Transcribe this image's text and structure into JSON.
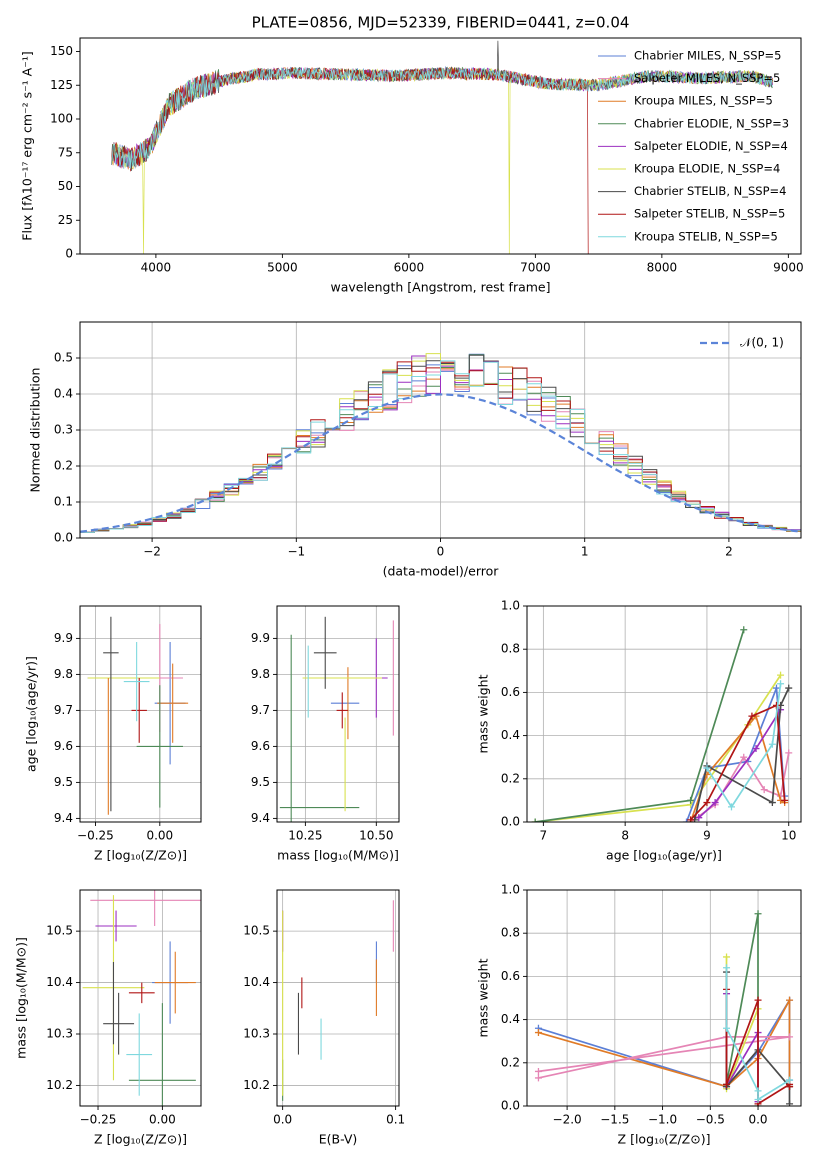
{
  "colors": {
    "chabrier_miles": "#5b7fd6",
    "salpeter_miles": "#e585b5",
    "kroupa_miles": "#e07b27",
    "chabrier_elodie": "#4e8a57",
    "salpeter_elodie": "#9b2fc0",
    "kroupa_elodie": "#d8e14e",
    "chabrier_stelib": "#4a4a4a",
    "salpeter_stelib": "#b01515",
    "kroupa_stelib": "#7fd8de"
  },
  "chart_data": [
    {
      "id": "spectrum",
      "type": "line",
      "title": "PLATE=0856, MJD=52339, FIBERID=0441, z=0.04",
      "xlabel": "wavelength [Angstrom, rest frame]",
      "ylabel": "Flux [fλ10⁻¹⁷ erg cm⁻² s⁻¹ A⁻¹]",
      "xlim": [
        3400,
        9100
      ],
      "ylim": [
        0,
        160
      ],
      "xticks": [
        "4000",
        "5000",
        "6000",
        "7000",
        "8000",
        "9000"
      ],
      "yticks": [
        "0",
        "25",
        "50",
        "75",
        "100",
        "125",
        "150"
      ],
      "grid": false,
      "legend_position": "top-right",
      "continuum": {
        "x": [
          3650,
          3800,
          3950,
          4100,
          4300,
          4500,
          4800,
          5100,
          5500,
          5900,
          6300,
          6700,
          7100,
          7500,
          7900,
          8300,
          8700,
          8880
        ],
        "y": [
          75,
          70,
          78,
          110,
          122,
          128,
          133,
          134,
          133,
          132,
          134,
          133,
          126,
          125,
          132,
          130,
          132,
          127
        ]
      },
      "series": [
        {
          "name": "Chabrier MILES, N_SSP=5",
          "color_key": "chabrier_miles"
        },
        {
          "name": "Salpeter MILES, N_SSP=5",
          "color_key": "salpeter_miles"
        },
        {
          "name": "Kroupa MILES, N_SSP=5",
          "color_key": "kroupa_miles"
        },
        {
          "name": "Chabrier ELODIE, N_SSP=3",
          "color_key": "chabrier_elodie"
        },
        {
          "name": "Salpeter ELODIE, N_SSP=4",
          "color_key": "salpeter_elodie"
        },
        {
          "name": "Kroupa ELODIE, N_SSP=4",
          "color_key": "kroupa_elodie"
        },
        {
          "name": "Chabrier STELIB, N_SSP=4",
          "color_key": "chabrier_stelib"
        },
        {
          "name": "Salpeter STELIB, N_SSP=5",
          "color_key": "salpeter_stelib"
        },
        {
          "name": "Kroupa STELIB, N_SSP=5",
          "color_key": "kroupa_stelib"
        }
      ]
    },
    {
      "id": "residuals",
      "type": "line",
      "title": "",
      "xlabel": "(data-model)/error",
      "ylabel": "Normed distribution",
      "xlim": [
        -2.5,
        2.5
      ],
      "ylim": [
        0,
        0.6
      ],
      "xticks": [
        "−2",
        "−1",
        "0",
        "1",
        "2"
      ],
      "yticks": [
        "0.0",
        "0.1",
        "0.2",
        "0.3",
        "0.4",
        "0.5"
      ],
      "grid": true,
      "legend_position": "top-right",
      "legend_label": "𝒩(0, 1)",
      "bin_edges_start": -2.5,
      "bin_width": 0.1,
      "hist_base": [
        0.018,
        0.022,
        0.027,
        0.033,
        0.04,
        0.05,
        0.062,
        0.077,
        0.095,
        0.115,
        0.137,
        0.16,
        0.184,
        0.21,
        0.237,
        0.265,
        0.293,
        0.32,
        0.345,
        0.37,
        0.395,
        0.41,
        0.432,
        0.45,
        0.465,
        0.47,
        0.467,
        0.456,
        0.445,
        0.43,
        0.415,
        0.395,
        0.372,
        0.345,
        0.318,
        0.29,
        0.26,
        0.23,
        0.2,
        0.17,
        0.142,
        0.117,
        0.096,
        0.078,
        0.063,
        0.05,
        0.04,
        0.032,
        0.026,
        0.021
      ],
      "series_color_keys": [
        "chabrier_miles",
        "salpeter_miles",
        "kroupa_miles",
        "chabrier_elodie",
        "salpeter_elodie",
        "kroupa_elodie",
        "chabrier_stelib",
        "salpeter_stelib",
        "kroupa_stelib"
      ]
    },
    {
      "id": "age_vs_z",
      "type": "scatter",
      "xlabel": "Z [log₁₀(Z/Z⊙)]",
      "ylabel": "age  [log₁₀(age/yr)]",
      "xlim": [
        -0.31,
        0.16
      ],
      "ylim": [
        9.39,
        9.99
      ],
      "xticks": [
        -0.25,
        0.0
      ],
      "xtick_labels": [
        "−0.25",
        "0.00"
      ],
      "yticks": [
        9.4,
        9.5,
        9.6,
        9.7,
        9.8,
        9.9
      ],
      "ytick_labels": [
        "9.4",
        "9.5",
        "9.6",
        "9.7",
        "9.8",
        "9.9"
      ],
      "grid": true,
      "points": [
        {
          "color_key": "chabrier_miles",
          "x": 0.04,
          "y": 9.72,
          "xerr": 0.06,
          "yerr": 0.17
        },
        {
          "color_key": "salpeter_miles",
          "x": 0.0,
          "y": 9.79,
          "xerr": 0.09,
          "yerr": 0.15
        },
        {
          "color_key": "kroupa_miles",
          "x": 0.05,
          "y": 9.72,
          "xerr": 0.06,
          "yerr": 0.11
        },
        {
          "color_key": "chabrier_elodie",
          "x": 0.0,
          "y": 9.6,
          "xerr": 0.09,
          "yerr": 0.17
        },
        {
          "color_key": "salpeter_elodie",
          "x": -0.18,
          "y": 9.79,
          "xerr": 0.1,
          "yerr": 0.0
        },
        {
          "color_key": "kroupa_elodie",
          "x": -0.14,
          "y": 9.79,
          "xerr": 0.14,
          "yerr": 0.0
        },
        {
          "color_key": "chabrier_stelib",
          "x": -0.19,
          "y": 9.69,
          "xerr": 0.0,
          "yerr": 0.27
        },
        {
          "color_key": "salpeter_stelib",
          "x": -0.08,
          "y": 9.7,
          "xerr": 0.03,
          "yerr": 0.09
        },
        {
          "color_key": "kroupa_stelib",
          "x": -0.09,
          "y": 9.78,
          "xerr": 0.05,
          "yerr": 0.11
        },
        {
          "color_key": "kroupa_miles",
          "x": -0.2,
          "y": 9.6,
          "xerr": 0.0,
          "yerr": 0.19
        },
        {
          "color_key": "chabrier_stelib",
          "x": -0.19,
          "y": 9.86,
          "xerr": 0.03,
          "yerr": 0.0
        }
      ]
    },
    {
      "id": "age_vs_mass",
      "type": "scatter",
      "xlabel": "mass [log₁₀(M/M⊙)]",
      "ylabel": "",
      "xlim": [
        10.15,
        10.58
      ],
      "ylim": [
        9.39,
        9.99
      ],
      "xticks": [
        10.25,
        10.5
      ],
      "xtick_labels": [
        "10.25",
        "10.50"
      ],
      "yticks": [
        9.4,
        9.5,
        9.6,
        9.7,
        9.8,
        9.9
      ],
      "ytick_labels": [
        "9.4",
        "9.5",
        "9.6",
        "9.7",
        "9.8",
        "9.9"
      ],
      "grid": true,
      "points": [
        {
          "color_key": "chabrier_miles",
          "x": 10.39,
          "y": 9.72,
          "xerr": 0.05,
          "yerr": 0.0
        },
        {
          "color_key": "salpeter_miles",
          "x": 10.56,
          "y": 9.79,
          "xerr": 0.0,
          "yerr": 0.16
        },
        {
          "color_key": "kroupa_miles",
          "x": 10.4,
          "y": 9.72,
          "xerr": 0.0,
          "yerr": 0.1
        },
        {
          "color_key": "chabrier_elodie",
          "x": 10.2,
          "y": 9.6,
          "xerr": 0.0,
          "yerr": 0.31
        },
        {
          "color_key": "salpeter_elodie",
          "x": 10.5,
          "y": 9.79,
          "xerr": 0.04,
          "yerr": 0.11
        },
        {
          "color_key": "kroupa_elodie",
          "x": 10.38,
          "y": 9.79,
          "xerr": 0.14,
          "yerr": 0.0
        },
        {
          "color_key": "chabrier_stelib",
          "x": 10.32,
          "y": 9.86,
          "xerr": 0.04,
          "yerr": 0.1
        },
        {
          "color_key": "salpeter_stelib",
          "x": 10.38,
          "y": 9.7,
          "xerr": 0.02,
          "yerr": 0.05
        },
        {
          "color_key": "kroupa_stelib",
          "x": 10.26,
          "y": 9.78,
          "xerr": 0.0,
          "yerr": 0.1
        },
        {
          "color_key": "chabrier_elodie",
          "x": 10.3,
          "y": 9.43,
          "xerr": 0.14,
          "yerr": 0.0
        },
        {
          "color_key": "kroupa_elodie",
          "x": 10.39,
          "y": 9.55,
          "xerr": 0.0,
          "yerr": 0.13
        }
      ]
    },
    {
      "id": "weight_vs_age",
      "type": "line",
      "xlabel": "age  [log₁₀(age/yr)]",
      "ylabel": "mass weight",
      "xlim": [
        6.8,
        10.15
      ],
      "ylim": [
        0,
        1
      ],
      "xticks": [
        7,
        8,
        9,
        10
      ],
      "xtick_labels": [
        "7",
        "8",
        "9",
        "10"
      ],
      "yticks": [
        0,
        0.2,
        0.4,
        0.6,
        0.8,
        1.0
      ],
      "ytick_labels": [
        "0.0",
        "0.2",
        "0.4",
        "0.6",
        "0.8",
        "1.0"
      ],
      "grid": true,
      "series": [
        {
          "color_key": "kroupa_elodie",
          "x": [
            6.9,
            8.8,
            9.5,
            9.9
          ],
          "y": [
            0.0,
            0.08,
            0.45,
            0.68
          ]
        },
        {
          "color_key": "chabrier_elodie",
          "x": [
            6.9,
            8.8,
            9.45
          ],
          "y": [
            0.0,
            0.1,
            0.89
          ]
        },
        {
          "color_key": "chabrier_miles",
          "x": [
            8.75,
            9.0,
            9.5,
            9.85,
            9.95
          ],
          "y": [
            0.0,
            0.25,
            0.28,
            0.62,
            0.12
          ]
        },
        {
          "color_key": "salpeter_miles",
          "x": [
            8.8,
            9.1,
            9.45,
            9.7,
            9.9,
            10.0
          ],
          "y": [
            0.0,
            0.08,
            0.3,
            0.15,
            0.12,
            0.32
          ]
        },
        {
          "color_key": "kroupa_miles",
          "x": [
            8.8,
            9.0,
            9.6,
            9.9,
            9.95
          ],
          "y": [
            0.0,
            0.22,
            0.49,
            0.1,
            0.09
          ]
        },
        {
          "color_key": "salpeter_elodie",
          "x": [
            8.9,
            9.1,
            9.6,
            9.9
          ],
          "y": [
            0.02,
            0.09,
            0.34,
            0.52
          ]
        },
        {
          "color_key": "chabrier_stelib",
          "x": [
            8.85,
            9.0,
            9.8,
            9.9,
            10.0
          ],
          "y": [
            0.01,
            0.26,
            0.09,
            0.54,
            0.62
          ]
        },
        {
          "color_key": "salpeter_stelib",
          "x": [
            8.8,
            9.0,
            9.55,
            9.85,
            9.95
          ],
          "y": [
            0.01,
            0.09,
            0.49,
            0.54,
            0.1
          ]
        },
        {
          "color_key": "kroupa_stelib",
          "x": [
            9.0,
            9.3,
            9.8,
            9.9
          ],
          "y": [
            0.25,
            0.07,
            0.36,
            0.64
          ]
        }
      ]
    },
    {
      "id": "mass_vs_z",
      "type": "scatter",
      "xlabel": "Z [log₁₀(Z/Z⊙)]",
      "ylabel": "mass [log₁₀(M/M⊙)]",
      "xlim": [
        -0.32,
        0.15
      ],
      "ylim": [
        10.16,
        10.58
      ],
      "xticks": [
        -0.25,
        0.0
      ],
      "xtick_labels": [
        "−0.25",
        "0.00"
      ],
      "yticks": [
        10.2,
        10.3,
        10.4,
        10.5
      ],
      "ytick_labels": [
        "10.2",
        "10.3",
        "10.4",
        "10.5"
      ],
      "grid": true,
      "points": [
        {
          "color_key": "chabrier_miles",
          "x": 0.03,
          "y": 10.4,
          "xerr": 0.07,
          "yerr": 0.08
        },
        {
          "color_key": "salpeter_miles",
          "x": -0.03,
          "y": 10.56,
          "xerr": 0.25,
          "yerr": 0.05
        },
        {
          "color_key": "kroupa_miles",
          "x": 0.05,
          "y": 10.4,
          "xerr": 0.08,
          "yerr": 0.06
        },
        {
          "color_key": "chabrier_elodie",
          "x": 0.0,
          "y": 10.21,
          "xerr": 0.13,
          "yerr": 0.15
        },
        {
          "color_key": "salpeter_elodie",
          "x": -0.18,
          "y": 10.51,
          "xerr": 0.08,
          "yerr": 0.03
        },
        {
          "color_key": "kroupa_elodie",
          "x": -0.19,
          "y": 10.39,
          "xerr": 0.12,
          "yerr": 0.18
        },
        {
          "color_key": "chabrier_stelib",
          "x": -0.17,
          "y": 10.32,
          "xerr": 0.06,
          "yerr": 0.06
        },
        {
          "color_key": "salpeter_stelib",
          "x": -0.08,
          "y": 10.38,
          "xerr": 0.05,
          "yerr": 0.02
        },
        {
          "color_key": "kroupa_stelib",
          "x": -0.09,
          "y": 10.26,
          "xerr": 0.05,
          "yerr": 0.08
        },
        {
          "color_key": "chabrier_stelib",
          "x": -0.19,
          "y": 10.36,
          "xerr": 0.0,
          "yerr": 0.08
        }
      ]
    },
    {
      "id": "mass_vs_ebv",
      "type": "scatter",
      "xlabel": "E(B-V)",
      "ylabel": "",
      "xlim": [
        -0.005,
        0.103
      ],
      "ylim": [
        10.16,
        10.58
      ],
      "xticks": [
        0.0,
        0.1
      ],
      "xtick_labels": [
        "0.0",
        "0.1"
      ],
      "yticks": [
        10.2,
        10.3,
        10.4,
        10.5
      ],
      "ytick_labels": [
        "10.2",
        "10.3",
        "10.4",
        "10.5"
      ],
      "grid": true,
      "points": [
        {
          "color_key": "chabrier_miles",
          "x": 0.083,
          "y": 10.44,
          "xerr": 0.0,
          "yerr": 0.04
        },
        {
          "color_key": "salpeter_miles",
          "x": 0.098,
          "y": 10.51,
          "xerr": 0.0,
          "yerr": 0.05
        },
        {
          "color_key": "kroupa_miles",
          "x": 0.083,
          "y": 10.39,
          "xerr": 0.0,
          "yerr": 0.055
        },
        {
          "color_key": "chabrier_elodie",
          "x": 0.0,
          "y": 10.21,
          "xerr": 0.0,
          "yerr": 0.04
        },
        {
          "color_key": "salpeter_elodie",
          "x": 0.0,
          "y": 10.5,
          "xerr": 0.0,
          "yerr": 0.04
        },
        {
          "color_key": "kroupa_elodie",
          "x": 0.0,
          "y": 10.36,
          "xerr": 0.0,
          "yerr": 0.18
        },
        {
          "color_key": "chabrier_stelib",
          "x": 0.014,
          "y": 10.32,
          "xerr": 0.0,
          "yerr": 0.06
        },
        {
          "color_key": "salpeter_stelib",
          "x": 0.017,
          "y": 10.38,
          "xerr": 0.0,
          "yerr": 0.03
        },
        {
          "color_key": "kroupa_stelib",
          "x": 0.034,
          "y": 10.29,
          "xerr": 0.0,
          "yerr": 0.04
        }
      ]
    },
    {
      "id": "weight_vs_z",
      "type": "line",
      "xlabel": "Z [log₁₀(Z/Z⊙)]",
      "ylabel": "mass weight",
      "xlim": [
        -2.42,
        0.45
      ],
      "ylim": [
        0,
        1
      ],
      "xticks": [
        -2.0,
        -1.5,
        -1.0,
        -0.5,
        0.0
      ],
      "xtick_labels": [
        "−2.0",
        "−1.5",
        "−1.0",
        "−0.5",
        "0.0"
      ],
      "yticks": [
        0,
        0.2,
        0.4,
        0.6,
        0.8,
        1.0
      ],
      "ytick_labels": [
        "0.0",
        "0.2",
        "0.4",
        "0.6",
        "0.8",
        "1.0"
      ],
      "grid": true,
      "series": [
        {
          "color_key": "chabrier_miles",
          "x": [
            -2.3,
            -0.33,
            0.0,
            0.33,
            0.33
          ],
          "y": [
            0.36,
            0.09,
            0.25,
            0.49,
            0.12
          ]
        },
        {
          "color_key": "kroupa_miles",
          "x": [
            -2.3,
            -0.33,
            0.0,
            0.33,
            0.33
          ],
          "y": [
            0.34,
            0.09,
            0.22,
            0.49,
            0.09
          ]
        },
        {
          "color_key": "salpeter_miles",
          "x": [
            -2.3,
            -0.33,
            0.0,
            0.33,
            -2.3
          ],
          "y": [
            0.13,
            0.32,
            0.32,
            0.32,
            0.16
          ]
        },
        {
          "color_key": "chabrier_elodie",
          "x": [
            -0.33,
            0.0,
            0.0
          ],
          "y": [
            0.1,
            0.89,
            0.0
          ]
        },
        {
          "color_key": "kroupa_elodie",
          "x": [
            -0.33,
            -0.33,
            0.0
          ],
          "y": [
            0.69,
            0.08,
            0.45
          ]
        },
        {
          "color_key": "salpeter_elodie",
          "x": [
            -0.33,
            -0.33,
            0.0,
            0.0
          ],
          "y": [
            0.52,
            0.09,
            0.34,
            0.02
          ]
        },
        {
          "color_key": "chabrier_stelib",
          "x": [
            -0.33,
            -0.33,
            0.0,
            0.33,
            0.33
          ],
          "y": [
            0.62,
            0.09,
            0.26,
            0.09,
            0.01
          ]
        },
        {
          "color_key": "salpeter_stelib",
          "x": [
            -0.33,
            -0.33,
            0.0,
            0.0,
            0.33,
            0.33
          ],
          "y": [
            0.54,
            0.1,
            0.49,
            0.01,
            0.1,
            0.09
          ]
        },
        {
          "color_key": "kroupa_stelib",
          "x": [
            -0.33,
            -0.33,
            0.0,
            0.0,
            0.33
          ],
          "y": [
            0.64,
            0.36,
            0.07,
            0.03,
            0.12
          ]
        }
      ]
    }
  ]
}
